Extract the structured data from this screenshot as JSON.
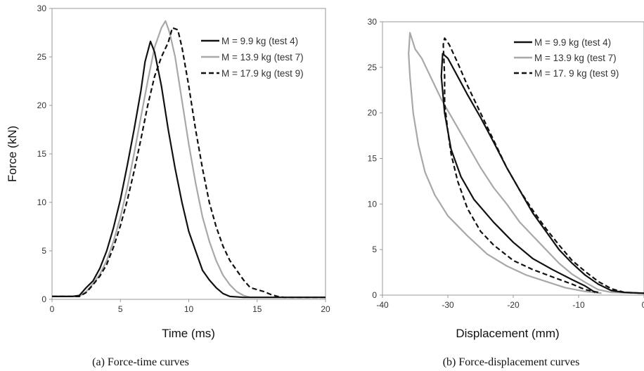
{
  "colors": {
    "test4": "#111111",
    "test7": "#a8a8a8",
    "test9": "#111111",
    "frame": "#9a9a9a"
  },
  "chart_data": [
    {
      "type": "line",
      "caption": "(a) Force-time curves",
      "xlabel": "Time (ms)",
      "ylabel": "Force (kN)",
      "xlim": [
        0,
        20
      ],
      "ylim": [
        0,
        30
      ],
      "xticks": [
        0,
        5,
        10,
        15,
        20
      ],
      "yticks": [
        0,
        5,
        10,
        15,
        20,
        25,
        30
      ],
      "grid": false,
      "legend_position": "top-right",
      "series": [
        {
          "name": "M = 9.9 kg (test 4)",
          "style": "solid",
          "color": "#111111",
          "points": [
            [
              0,
              0.3
            ],
            [
              1.5,
              0.3
            ],
            [
              2,
              0.4
            ],
            [
              2.5,
              1.2
            ],
            [
              3,
              1.9
            ],
            [
              3.5,
              3.2
            ],
            [
              4,
              5.0
            ],
            [
              4.5,
              7.4
            ],
            [
              5,
              10.3
            ],
            [
              5.5,
              13.8
            ],
            [
              6,
              17.5
            ],
            [
              6.5,
              21.5
            ],
            [
              6.8,
              24.5
            ],
            [
              7.2,
              26.6
            ],
            [
              7.5,
              25.5
            ],
            [
              8,
              22.0
            ],
            [
              8.5,
              17.5
            ],
            [
              9,
              13.5
            ],
            [
              9.5,
              10.0
            ],
            [
              10,
              7.0
            ],
            [
              10.5,
              5.0
            ],
            [
              11,
              3.0
            ],
            [
              11.5,
              2.0
            ],
            [
              12,
              1.2
            ],
            [
              12.5,
              0.6
            ],
            [
              13,
              0.3
            ],
            [
              14,
              0.2
            ],
            [
              20,
              0.2
            ]
          ]
        },
        {
          "name": "M = 13.9 kg (test 7)",
          "style": "solid",
          "color": "#a8a8a8",
          "points": [
            [
              0,
              0.3
            ],
            [
              2,
              0.3
            ],
            [
              2.5,
              0.8
            ],
            [
              3,
              1.6
            ],
            [
              3.5,
              2.6
            ],
            [
              4,
              4.0
            ],
            [
              4.5,
              6.0
            ],
            [
              5,
              8.5
            ],
            [
              5.5,
              11.5
            ],
            [
              6,
              15.0
            ],
            [
              6.5,
              18.8
            ],
            [
              7,
              22.5
            ],
            [
              7.5,
              26.0
            ],
            [
              8,
              28.0
            ],
            [
              8.3,
              28.7
            ],
            [
              8.6,
              27.5
            ],
            [
              9,
              25.0
            ],
            [
              9.5,
              20.5
            ],
            [
              10,
              16.0
            ],
            [
              10.5,
              12.0
            ],
            [
              11,
              8.5
            ],
            [
              11.5,
              6.0
            ],
            [
              12,
              4.0
            ],
            [
              12.5,
              2.5
            ],
            [
              13,
              1.5
            ],
            [
              13.5,
              0.8
            ],
            [
              14,
              0.4
            ],
            [
              14.5,
              0.2
            ],
            [
              20,
              0.2
            ]
          ]
        },
        {
          "name": "M = 17.9 kg (test 9)",
          "style": "dashed",
          "color": "#111111",
          "points": [
            [
              0,
              0.3
            ],
            [
              2,
              0.3
            ],
            [
              2.5,
              0.7
            ],
            [
              3,
              1.5
            ],
            [
              3.5,
              2.4
            ],
            [
              4,
              3.6
            ],
            [
              4.5,
              5.4
            ],
            [
              5,
              7.6
            ],
            [
              5.5,
              10.2
            ],
            [
              6,
              13.2
            ],
            [
              6.5,
              16.5
            ],
            [
              7,
              20.0
            ],
            [
              7.5,
              23.0
            ],
            [
              8,
              25.0
            ],
            [
              8.5,
              26.5
            ],
            [
              8.8,
              28.0
            ],
            [
              9.2,
              27.8
            ],
            [
              9.5,
              26.0
            ],
            [
              10,
              22.0
            ],
            [
              10.5,
              17.5
            ],
            [
              11,
              13.5
            ],
            [
              11.5,
              10.0
            ],
            [
              12,
              7.5
            ],
            [
              12.5,
              5.5
            ],
            [
              13,
              4.0
            ],
            [
              13.5,
              3.0
            ],
            [
              14,
              2.0
            ],
            [
              14.5,
              1.2
            ],
            [
              15,
              1.0
            ],
            [
              15.5,
              0.8
            ],
            [
              16,
              0.5
            ],
            [
              16.5,
              0.3
            ],
            [
              17,
              0.2
            ],
            [
              20,
              0.2
            ]
          ]
        }
      ]
    },
    {
      "type": "line",
      "caption": "(b) Force-displacement curves",
      "xlabel": "Displacement (mm)",
      "ylabel": "",
      "xlim": [
        -40,
        0
      ],
      "ylim": [
        0,
        30
      ],
      "xticks": [
        -40,
        -30,
        -20,
        -10,
        0
      ],
      "yticks": [
        0,
        5,
        10,
        15,
        20,
        25,
        30
      ],
      "grid": false,
      "legend_position": "top-right",
      "series": [
        {
          "name": "M = 9.9 kg (test 4)",
          "style": "solid",
          "color": "#111111",
          "points": [
            [
              -7.5,
              0.3
            ],
            [
              -9,
              1.0
            ],
            [
              -11,
              1.7
            ],
            [
              -14,
              2.8
            ],
            [
              -17,
              4.0
            ],
            [
              -20,
              5.8
            ],
            [
              -23,
              8.0
            ],
            [
              -26,
              10.5
            ],
            [
              -28,
              13.0
            ],
            [
              -29.5,
              16.0
            ],
            [
              -30.5,
              20.0
            ],
            [
              -31,
              24.0
            ],
            [
              -30.8,
              26.5
            ],
            [
              -30,
              26.0
            ],
            [
              -28.5,
              24.0
            ],
            [
              -27,
              22.0
            ],
            [
              -25,
              19.5
            ],
            [
              -23,
              16.8
            ],
            [
              -21,
              14.0
            ],
            [
              -19,
              11.5
            ],
            [
              -17,
              9.0
            ],
            [
              -15,
              7.0
            ],
            [
              -13,
              5.0
            ],
            [
              -11,
              3.5
            ],
            [
              -9,
              2.2
            ],
            [
              -7,
              1.2
            ],
            [
              -5,
              0.5
            ],
            [
              -3,
              0.3
            ],
            [
              0,
              0.2
            ]
          ]
        },
        {
          "name": "M = 13.9 kg (test 7)",
          "style": "solid",
          "color": "#a8a8a8",
          "points": [
            [
              -6.5,
              0.2
            ],
            [
              -9,
              0.4
            ],
            [
              -12,
              0.8
            ],
            [
              -15,
              1.5
            ],
            [
              -18,
              2.2
            ],
            [
              -21,
              3.2
            ],
            [
              -24,
              4.5
            ],
            [
              -27,
              6.5
            ],
            [
              -30,
              8.7
            ],
            [
              -32,
              11.0
            ],
            [
              -33.5,
              13.5
            ],
            [
              -34.5,
              16.5
            ],
            [
              -35.3,
              20.0
            ],
            [
              -35.8,
              24.0
            ],
            [
              -36,
              26.5
            ],
            [
              -35.8,
              28.8
            ],
            [
              -35,
              27.0
            ],
            [
              -34,
              26.0
            ],
            [
              -33,
              24.5
            ],
            [
              -31,
              21.5
            ],
            [
              -29,
              19.0
            ],
            [
              -27,
              16.5
            ],
            [
              -25,
              14.0
            ],
            [
              -23,
              11.8
            ],
            [
              -21,
              10.0
            ],
            [
              -19,
              8.0
            ],
            [
              -17,
              6.5
            ],
            [
              -15,
              5.0
            ],
            [
              -13,
              3.5
            ],
            [
              -11,
              2.3
            ],
            [
              -9,
              1.4
            ],
            [
              -7,
              0.6
            ],
            [
              -5,
              0.3
            ],
            [
              0,
              0.2
            ]
          ]
        },
        {
          "name": "M = 17. 9 kg (test 9)",
          "style": "dashed",
          "color": "#111111",
          "points": [
            [
              -7,
              0.3
            ],
            [
              -9,
              0.6
            ],
            [
              -11,
              1.2
            ],
            [
              -14,
              2.0
            ],
            [
              -17,
              2.8
            ],
            [
              -20,
              3.8
            ],
            [
              -23,
              5.5
            ],
            [
              -25,
              7.0
            ],
            [
              -27,
              9.5
            ],
            [
              -28.5,
              12.5
            ],
            [
              -29.5,
              15.5
            ],
            [
              -30,
              18.0
            ],
            [
              -30.5,
              21.0
            ],
            [
              -30.5,
              24.0
            ],
            [
              -30.7,
              27.5
            ],
            [
              -30.5,
              28.2
            ],
            [
              -29.8,
              27.5
            ],
            [
              -28.5,
              25.5
            ],
            [
              -27,
              23.0
            ],
            [
              -25,
              20.0
            ],
            [
              -23,
              17.0
            ],
            [
              -21,
              14.0
            ],
            [
              -19,
              11.5
            ],
            [
              -17,
              9.3
            ],
            [
              -15,
              7.3
            ],
            [
              -13,
              5.5
            ],
            [
              -11,
              3.8
            ],
            [
              -9,
              2.6
            ],
            [
              -7,
              1.5
            ],
            [
              -5,
              0.7
            ],
            [
              -3,
              0.3
            ],
            [
              0,
              0.2
            ]
          ]
        }
      ]
    }
  ]
}
